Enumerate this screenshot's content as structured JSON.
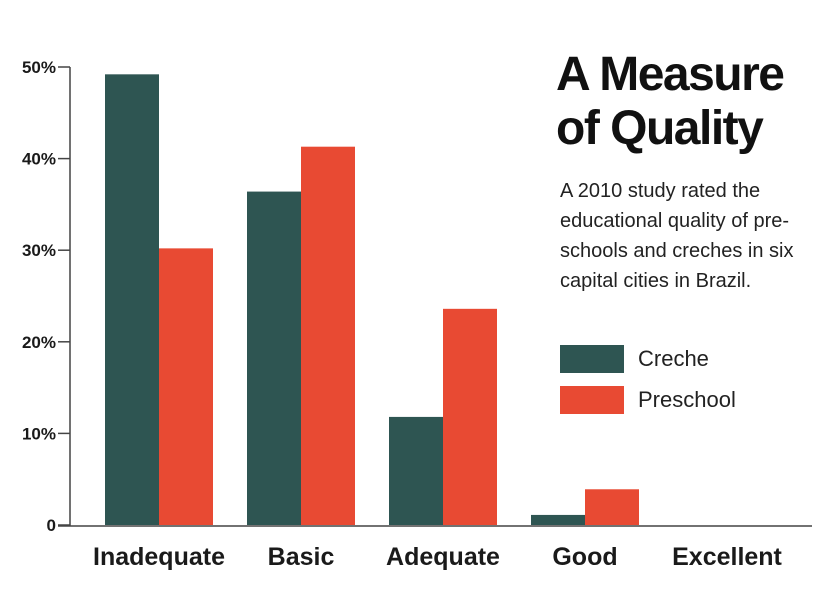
{
  "chart_data": {
    "type": "bar",
    "title": [
      "A Measure",
      "of Quality"
    ],
    "subtitle": [
      "A 2010 study rated the",
      "educational quality of pre-",
      "schools and creches in six",
      "capital cities in Brazil."
    ],
    "categories": [
      "Inadequate",
      "Basic",
      "Adequate",
      "Good",
      "Excellent"
    ],
    "series": [
      {
        "name": "Creche",
        "values": [
          49.2,
          36.4,
          11.8,
          1.1,
          0
        ],
        "color": "#2e5552"
      },
      {
        "name": "Preschool",
        "values": [
          30.2,
          41.3,
          23.6,
          3.9,
          0
        ],
        "color": "#e84a33"
      }
    ],
    "y_ticks": [
      {
        "value": 0,
        "label": "0"
      },
      {
        "value": 10,
        "label": "10%"
      },
      {
        "value": 20,
        "label": "20%"
      },
      {
        "value": 30,
        "label": "30%"
      },
      {
        "value": 40,
        "label": "40%"
      },
      {
        "value": 50,
        "label": "50%"
      }
    ],
    "ylim": [
      0,
      50
    ],
    "grid": false,
    "legend_position": "right"
  }
}
